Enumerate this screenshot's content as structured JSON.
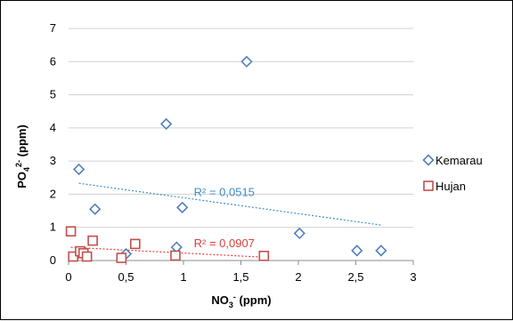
{
  "chart_data": {
    "type": "scatter",
    "xlabel": {
      "base": "NO",
      "sub": "3",
      "sup": "-",
      "unit": "(ppm)"
    },
    "ylabel": {
      "base": "PO",
      "sub": "4",
      "sup": "2-",
      "unit": "(ppm)"
    },
    "xlim": [
      0,
      3
    ],
    "ylim": [
      0,
      7
    ],
    "x_ticks": [
      "0",
      "0,5",
      "1",
      "1,5",
      "2",
      "2,5",
      "3"
    ],
    "y_ticks": [
      "0",
      "1",
      "2",
      "3",
      "4",
      "5",
      "6",
      "7"
    ],
    "grid": "horizontal",
    "legend_position": "right",
    "series": [
      {
        "name": "Kemarau",
        "marker": "diamond",
        "color": "#4f81bd",
        "points": [
          [
            0.09,
            2.75
          ],
          [
            0.23,
            1.55
          ],
          [
            0.5,
            0.2
          ],
          [
            0.85,
            4.12
          ],
          [
            0.94,
            0.4
          ],
          [
            0.99,
            1.6
          ],
          [
            1.55,
            6.0
          ],
          [
            2.01,
            0.82
          ],
          [
            2.51,
            0.3
          ],
          [
            2.72,
            0.3
          ]
        ],
        "trendline": {
          "x": [
            0.09,
            2.72
          ],
          "y": [
            2.33,
            1.07
          ],
          "color": "#3c8fcc"
        },
        "r2_label": "R² = 0,0515"
      },
      {
        "name": "Hujan",
        "marker": "square",
        "color": "#c0504d",
        "points": [
          [
            0.02,
            0.88
          ],
          [
            0.04,
            0.12
          ],
          [
            0.1,
            0.28
          ],
          [
            0.13,
            0.22
          ],
          [
            0.16,
            0.12
          ],
          [
            0.21,
            0.6
          ],
          [
            0.46,
            0.08
          ],
          [
            0.58,
            0.5
          ],
          [
            0.93,
            0.15
          ],
          [
            1.7,
            0.14
          ]
        ],
        "trendline": {
          "x": [
            0.02,
            1.7
          ],
          "y": [
            0.4,
            0.1
          ],
          "color": "#e03c3c"
        },
        "r2_label": "R² = 0,0907"
      }
    ]
  }
}
